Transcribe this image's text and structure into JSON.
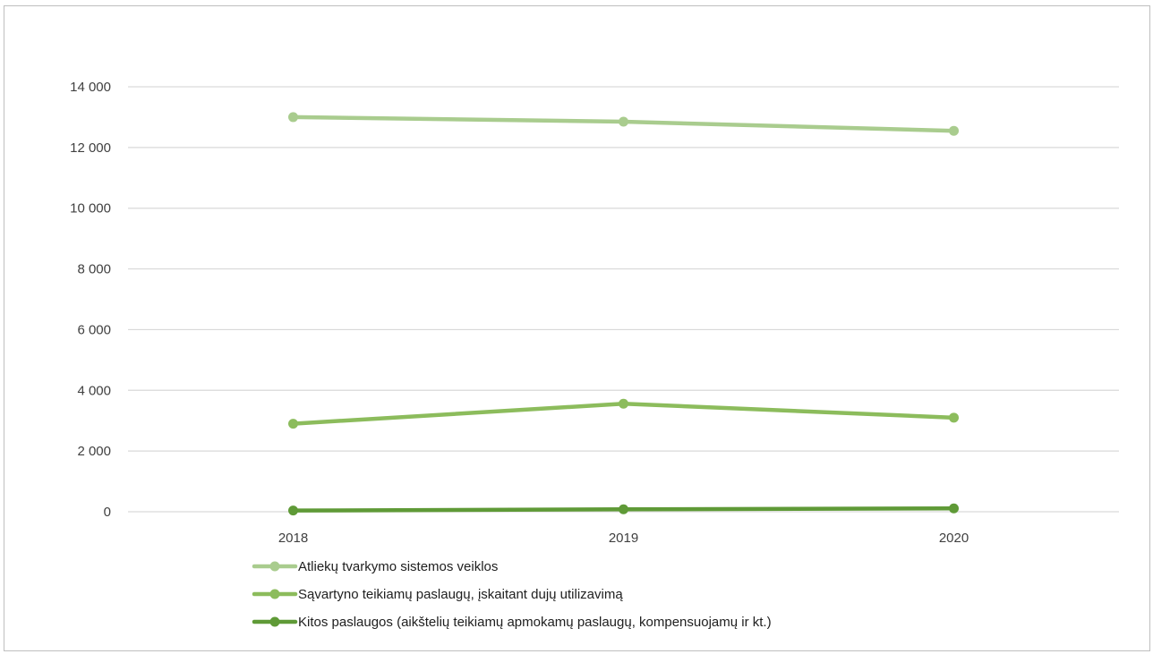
{
  "chart_data": {
    "type": "line",
    "categories": [
      "2018",
      "2019",
      "2020"
    ],
    "ylim": [
      0,
      14000
    ],
    "yticks": [
      0,
      2000,
      4000,
      6000,
      8000,
      10000,
      12000,
      14000
    ],
    "ytick_labels": [
      "0",
      "2 000",
      "4 000",
      "6 000",
      "8 000",
      "10 000",
      "12 000",
      "14 000"
    ],
    "grid": true,
    "legend_position": "bottom-left",
    "series": [
      {
        "name": "Atliekų tvarkymo sistemos veiklos",
        "values": [
          13000,
          12850,
          12550
        ],
        "color": "#a9cc8e"
      },
      {
        "name": "Sąvartyno teikiamų paslaugų, įskaitant dujų utilizavimą",
        "values": [
          2900,
          3560,
          3100
        ],
        "color": "#8cbc5c"
      },
      {
        "name": "Kitos paslaugos (aikštelių teikiamų apmokamų paslaugų, kompensuojamų ir kt.)",
        "values": [
          40,
          80,
          110
        ],
        "color": "#5f9a37"
      }
    ]
  }
}
